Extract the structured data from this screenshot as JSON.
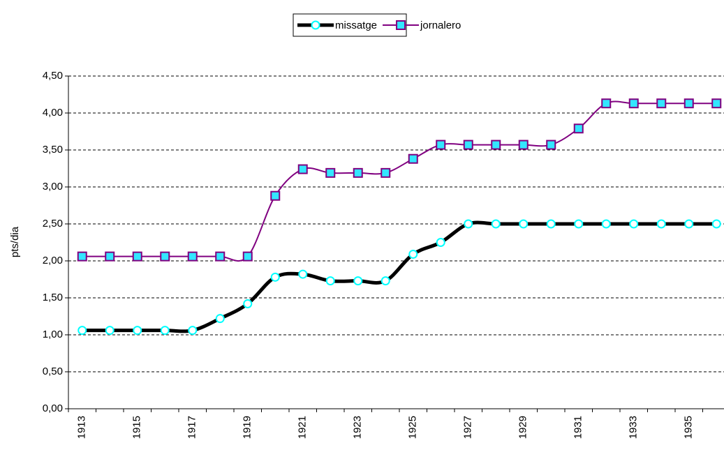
{
  "chart_data": {
    "type": "line",
    "categories": [
      "1913",
      null,
      "1915",
      null,
      "1917",
      null,
      "1919",
      null,
      "1921",
      null,
      "1923",
      null,
      "1925",
      null,
      "1927",
      null,
      "1929",
      null,
      "1931",
      null,
      "1933",
      null,
      "1935",
      null
    ],
    "series": [
      {
        "name": "missatge",
        "color": "#000000",
        "marker_fill": "#ffffff",
        "marker_stroke": "#00ffff",
        "marker": "circle",
        "values": [
          1.06,
          1.06,
          1.06,
          1.06,
          1.06,
          1.22,
          1.42,
          1.78,
          1.82,
          1.73,
          1.73,
          1.73,
          2.09,
          2.25,
          2.5,
          2.5,
          2.5,
          2.5,
          2.5,
          2.5,
          2.5,
          2.5,
          2.5,
          2.5
        ]
      },
      {
        "name": "jornalero",
        "color": "#800080",
        "marker_fill": "#33e6ff",
        "marker_stroke": "#800080",
        "marker": "square",
        "values": [
          2.06,
          2.06,
          2.06,
          2.06,
          2.06,
          2.06,
          2.06,
          2.88,
          3.24,
          3.19,
          3.19,
          3.19,
          3.38,
          3.57,
          3.57,
          3.57,
          3.57,
          3.57,
          3.79,
          4.13,
          4.13,
          4.13,
          4.13,
          4.13
        ]
      }
    ],
    "y_label": "pts/dia",
    "ylim": [
      0,
      4.5
    ],
    "yticks": [
      {
        "value": 0,
        "label": "0,00"
      },
      {
        "value": 0.5,
        "label": "0,50"
      },
      {
        "value": 1,
        "label": "1,00"
      },
      {
        "value": 1.5,
        "label": "1,50"
      },
      {
        "value": 2,
        "label": "2,00"
      },
      {
        "value": 2.5,
        "label": "2,50"
      },
      {
        "value": 3,
        "label": "3,00"
      },
      {
        "value": 3.5,
        "label": "3,50"
      },
      {
        "value": 4,
        "label": "4,00"
      },
      {
        "value": 4.5,
        "label": "4,50"
      }
    ],
    "grid": true,
    "smooth": true,
    "legend": "top"
  }
}
